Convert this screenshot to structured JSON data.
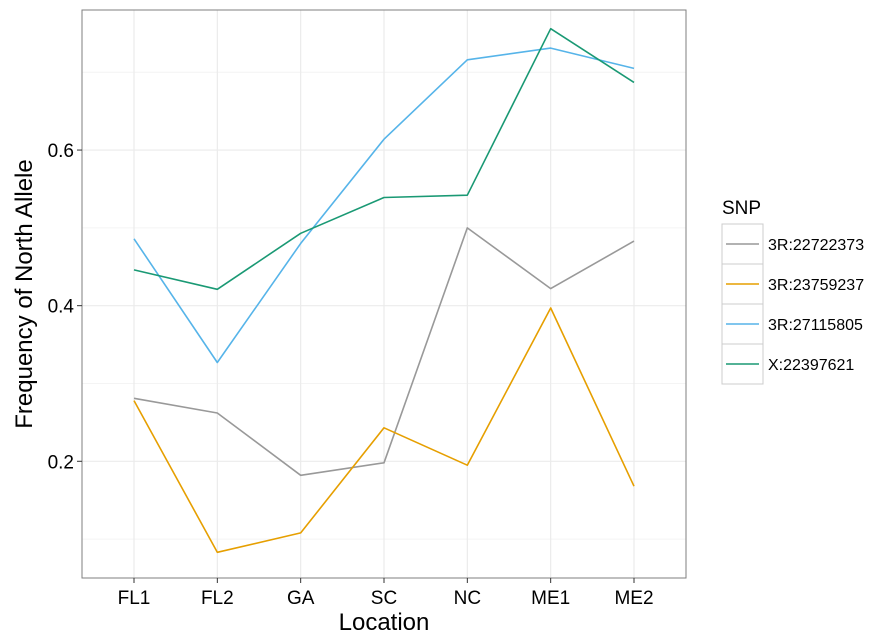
{
  "chart_data": {
    "type": "line",
    "categories": [
      "FL1",
      "FL2",
      "GA",
      "SC",
      "NC",
      "ME1",
      "ME2"
    ],
    "xlabel": "Location",
    "ylabel": "Frequency of North Allele",
    "ylim": [
      0.05,
      0.78
    ],
    "yticks": [
      0.2,
      0.4,
      0.6
    ],
    "ytick_labels": [
      "0.2",
      "0.4",
      "0.6"
    ],
    "grid": true,
    "legend": {
      "title": "SNP",
      "position": "right"
    },
    "series": [
      {
        "name": "3R:22722373",
        "color": "#999999",
        "values": [
          0.281,
          0.262,
          0.182,
          0.198,
          0.5,
          0.422,
          0.483
        ]
      },
      {
        "name": "3R:23759237",
        "color": "#E69F00",
        "values": [
          0.278,
          0.083,
          0.108,
          0.243,
          0.195,
          0.397,
          0.168
        ]
      },
      {
        "name": "3R:27115805",
        "color": "#56B4E9",
        "values": [
          0.486,
          0.327,
          0.48,
          0.614,
          0.716,
          0.731,
          0.705
        ]
      },
      {
        "name": "X:22397621",
        "color": "#1A9974",
        "values": [
          0.446,
          0.421,
          0.493,
          0.539,
          0.542,
          0.756,
          0.687
        ]
      }
    ]
  }
}
